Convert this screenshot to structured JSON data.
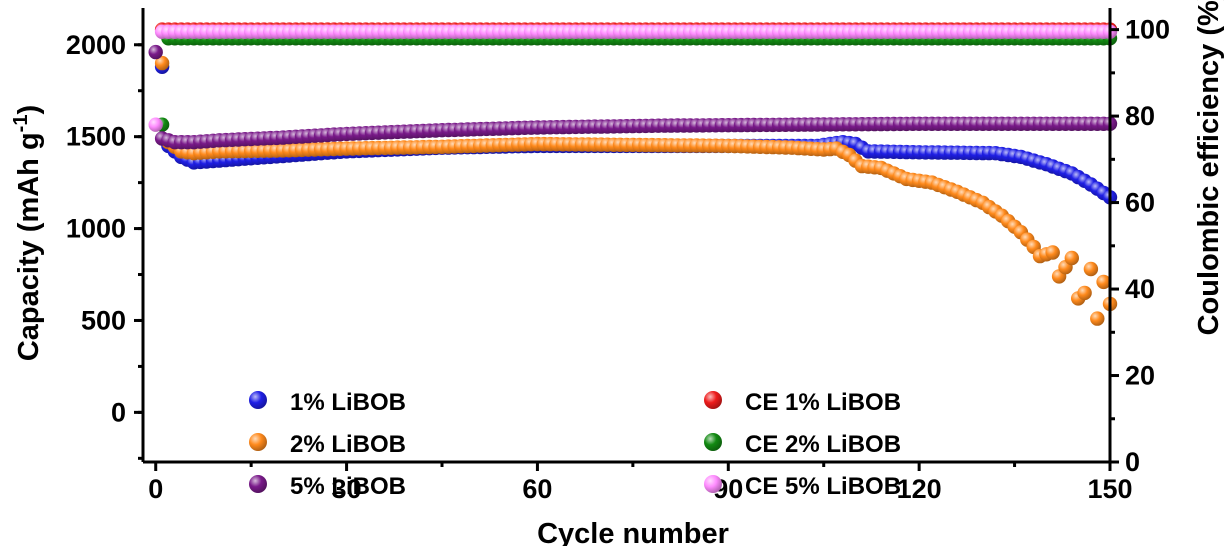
{
  "chart_data": {
    "type": "scatter",
    "xlabel": "Cycle number",
    "ylabel": "Capacity (mAh g",
    "ylabel_sup": "-1",
    "ylabel_close": ")",
    "y2label": "Coulombic efficiency (%)",
    "xlim": [
      -2,
      150
    ],
    "ylim": [
      -270,
      2200
    ],
    "y2lim": [
      0,
      105
    ],
    "x_ticks": [
      0,
      30,
      60,
      90,
      120,
      150
    ],
    "x_tick_labels": [
      "0",
      "30",
      "60",
      "90",
      "120",
      "150"
    ],
    "y_ticks": [
      0,
      500,
      1000,
      1500,
      2000
    ],
    "y_tick_labels": [
      "0",
      "500",
      "1000",
      "1500",
      "2000"
    ],
    "y2_ticks": [
      0,
      20,
      40,
      60,
      80,
      100
    ],
    "y2_tick_labels": [
      "0",
      "20",
      "40",
      "60",
      "80",
      "100"
    ],
    "grid": false,
    "legend_placement": "bottom-center",
    "series": [
      {
        "name": "1% LiBOB",
        "axis": "left",
        "color": "#1f1fe6",
        "profile": [
          [
            1,
            1880
          ],
          [
            2,
            1450
          ],
          [
            4,
            1390
          ],
          [
            6,
            1360
          ],
          [
            10,
            1370
          ],
          [
            20,
            1395
          ],
          [
            30,
            1420
          ],
          [
            45,
            1440
          ],
          [
            60,
            1450
          ],
          [
            80,
            1450
          ],
          [
            95,
            1450
          ],
          [
            104,
            1450
          ],
          [
            108,
            1470
          ],
          [
            110,
            1460
          ],
          [
            112,
            1420
          ],
          [
            120,
            1415
          ],
          [
            132,
            1410
          ],
          [
            136,
            1390
          ],
          [
            140,
            1350
          ],
          [
            144,
            1300
          ],
          [
            147,
            1240
          ],
          [
            150,
            1170
          ]
        ]
      },
      {
        "name": "2% LiBOB",
        "axis": "left",
        "color": "#ff8a1c",
        "profile": [
          [
            1,
            1900
          ],
          [
            2,
            1470
          ],
          [
            4,
            1420
          ],
          [
            6,
            1410
          ],
          [
            10,
            1420
          ],
          [
            20,
            1425
          ],
          [
            30,
            1435
          ],
          [
            45,
            1445
          ],
          [
            60,
            1460
          ],
          [
            75,
            1455
          ],
          [
            90,
            1450
          ],
          [
            100,
            1440
          ],
          [
            105,
            1430
          ],
          [
            107,
            1435
          ],
          [
            109,
            1400
          ],
          [
            111,
            1340
          ],
          [
            114,
            1330
          ],
          [
            118,
            1270
          ],
          [
            122,
            1250
          ],
          [
            126,
            1200
          ],
          [
            130,
            1140
          ],
          [
            133,
            1070
          ],
          [
            136,
            980
          ],
          [
            138,
            900
          ],
          [
            139,
            850
          ],
          [
            141,
            870
          ],
          [
            142,
            740
          ],
          [
            144,
            840
          ],
          [
            145,
            620
          ],
          [
            146,
            650
          ],
          [
            147,
            780
          ],
          [
            148,
            510
          ],
          [
            149,
            710
          ],
          [
            150,
            590
          ]
        ]
      },
      {
        "name": "5% LiBOB",
        "axis": "left",
        "color": "#7a1a8a",
        "profile": [
          [
            0,
            1960
          ],
          [
            1,
            1490
          ],
          [
            3,
            1470
          ],
          [
            6,
            1470
          ],
          [
            10,
            1480
          ],
          [
            20,
            1495
          ],
          [
            30,
            1515
          ],
          [
            45,
            1535
          ],
          [
            60,
            1550
          ],
          [
            80,
            1560
          ],
          [
            100,
            1565
          ],
          [
            120,
            1570
          ],
          [
            150,
            1570
          ]
        ]
      },
      {
        "name": "CE 1% LiBOB",
        "axis": "right",
        "color": "#ee1c1c",
        "profile": [
          [
            1,
            100
          ],
          [
            150,
            100
          ]
        ]
      },
      {
        "name": "CE 2% LiBOB",
        "axis": "right",
        "color": "#128a12",
        "profile": [
          [
            1,
            78
          ],
          [
            2,
            98
          ],
          [
            150,
            98
          ]
        ]
      },
      {
        "name": "CE 5% LiBOB",
        "axis": "right",
        "color": "#ff8cff",
        "profile": [
          [
            0,
            78
          ],
          [
            1,
            99.5
          ],
          [
            150,
            99.5
          ]
        ]
      }
    ]
  }
}
